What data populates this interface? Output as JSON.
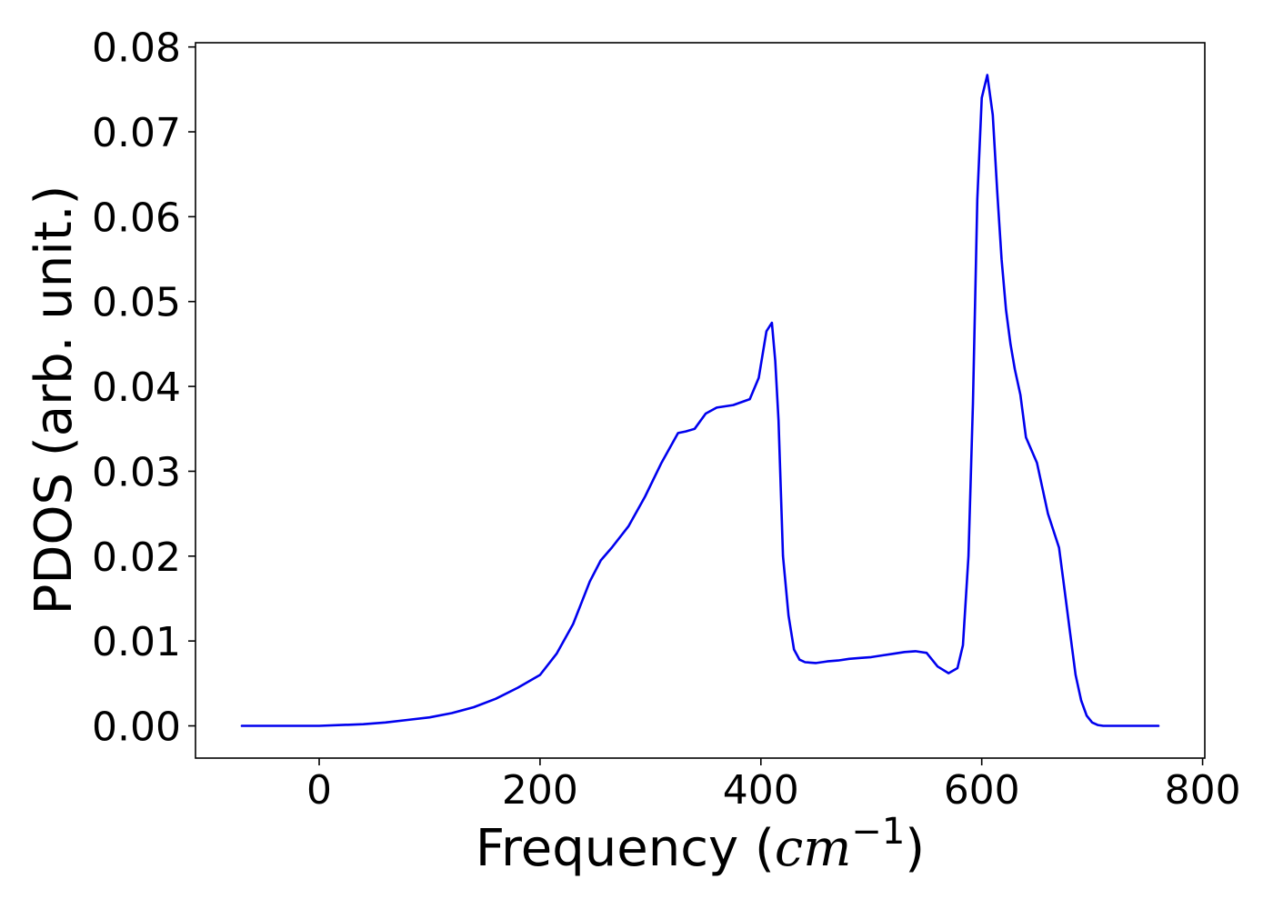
{
  "chart_data": {
    "type": "line",
    "title": "",
    "xlabel": {
      "prefix": "Frequency (",
      "unit": "cm",
      "exponent": "−1",
      "suffix": ")"
    },
    "ylabel": "PDOS (arb. unit.)",
    "xlim": [
      -112,
      802
    ],
    "ylim": [
      -0.0038,
      0.0805
    ],
    "xticks": [
      0,
      200,
      400,
      600,
      800
    ],
    "xtick_labels": [
      "0",
      "200",
      "400",
      "600",
      "800"
    ],
    "yticks": [
      0.0,
      0.01,
      0.02,
      0.03,
      0.04,
      0.05,
      0.06,
      0.07,
      0.08
    ],
    "ytick_labels": [
      "0.00",
      "0.01",
      "0.02",
      "0.03",
      "0.04",
      "0.05",
      "0.06",
      "0.07",
      "0.08"
    ],
    "grid": false,
    "colors": {
      "line": "#0000ee",
      "axes": "#000000",
      "background": "#ffffff"
    },
    "series": [
      {
        "x": [
          -70,
          -40,
          0,
          20,
          40,
          60,
          80,
          100,
          120,
          140,
          160,
          180,
          200,
          215,
          230,
          245,
          255,
          265,
          280,
          295,
          310,
          325,
          332,
          340,
          350,
          360,
          375,
          390,
          398,
          405,
          410,
          413,
          416,
          420,
          425,
          430,
          435,
          440,
          450,
          460,
          470,
          480,
          490,
          500,
          510,
          520,
          530,
          540,
          550,
          560,
          570,
          578,
          583,
          588,
          592,
          596,
          600,
          605,
          610,
          614,
          618,
          622,
          626,
          630,
          635,
          640,
          650,
          660,
          670,
          675,
          680,
          685,
          690,
          695,
          700,
          705,
          710,
          720,
          740,
          760
        ],
        "y": [
          0,
          0,
          0,
          0.0001,
          0.0002,
          0.0004,
          0.0007,
          0.001,
          0.0015,
          0.0022,
          0.0032,
          0.0045,
          0.006,
          0.0085,
          0.012,
          0.017,
          0.0195,
          0.021,
          0.0235,
          0.027,
          0.031,
          0.0345,
          0.0347,
          0.035,
          0.0368,
          0.0375,
          0.0378,
          0.0385,
          0.041,
          0.0465,
          0.0475,
          0.043,
          0.036,
          0.02,
          0.013,
          0.009,
          0.0078,
          0.0075,
          0.0074,
          0.0076,
          0.0077,
          0.0079,
          0.008,
          0.0081,
          0.0083,
          0.0085,
          0.0087,
          0.0088,
          0.0086,
          0.007,
          0.0062,
          0.0068,
          0.0095,
          0.02,
          0.038,
          0.062,
          0.074,
          0.0767,
          0.072,
          0.063,
          0.055,
          0.049,
          0.045,
          0.042,
          0.039,
          0.034,
          0.031,
          0.025,
          0.021,
          0.016,
          0.011,
          0.006,
          0.003,
          0.0012,
          0.0004,
          0.0001,
          0,
          0,
          0,
          0
        ]
      }
    ]
  }
}
